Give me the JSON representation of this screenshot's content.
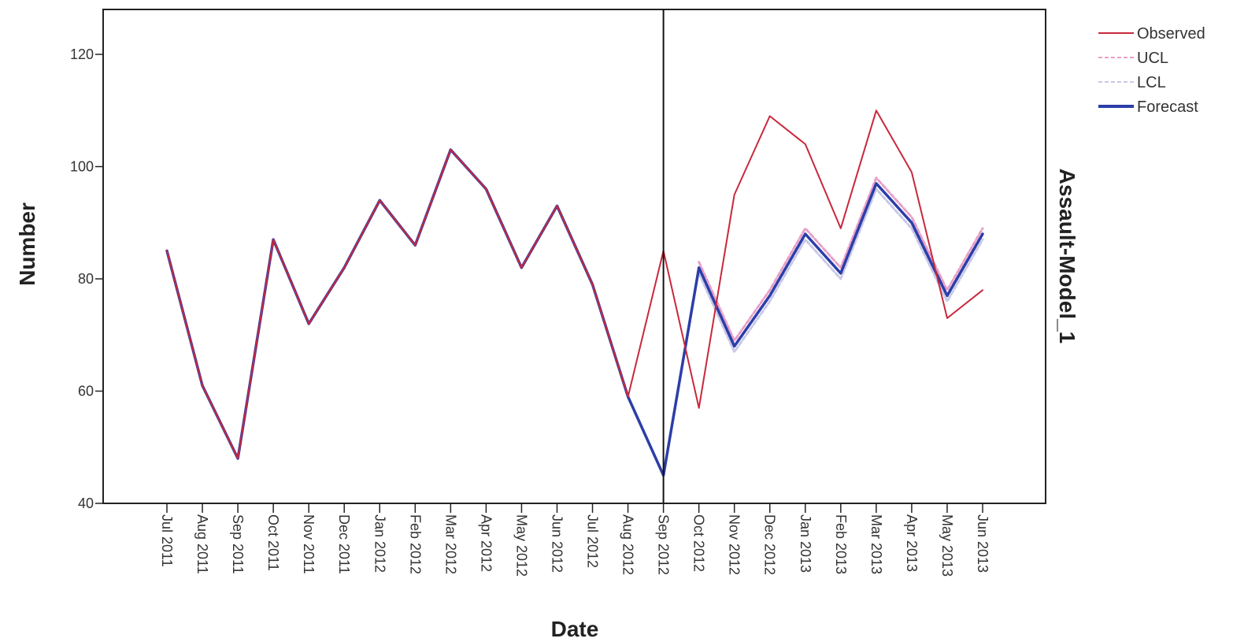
{
  "chart_data": {
    "type": "line",
    "title": "",
    "xlabel": "Date",
    "ylabel": "Number",
    "side_label": "Assault-Model_1",
    "ylim": [
      40,
      128
    ],
    "yticks": [
      40,
      60,
      80,
      100,
      120
    ],
    "categories": [
      "Jul 2011",
      "Aug 2011",
      "Sep 2011",
      "Oct 2011",
      "Nov 2011",
      "Dec 2011",
      "Jan 2012",
      "Feb 2012",
      "Mar 2012",
      "Apr 2012",
      "May 2012",
      "Jun 2012",
      "Jul 2012",
      "Aug 2012",
      "Sep 2012",
      "Oct 2012",
      "Nov 2012",
      "Dec 2012",
      "Jan 2013",
      "Feb 2013",
      "Mar 2013",
      "Apr 2013",
      "May 2013",
      "Jun 2013"
    ],
    "reference_line": "Sep 2012",
    "grid": false,
    "legend_position": "top-right",
    "series": [
      {
        "name": "Observed",
        "color": "#c8283c",
        "style": "solid",
        "values": [
          85,
          61,
          48,
          87,
          72,
          82,
          94,
          86,
          103,
          96,
          82,
          93,
          79,
          59,
          85,
          57,
          95,
          109,
          104,
          89,
          110,
          99,
          73,
          78
        ]
      },
      {
        "name": "UCL",
        "color": "#e8a0c8",
        "style": "dashed",
        "values": [
          85,
          61,
          48,
          87,
          72,
          82,
          94,
          86,
          103,
          96,
          82,
          93,
          79,
          59,
          null,
          83,
          69,
          78,
          89,
          82,
          98,
          91,
          78,
          89
        ]
      },
      {
        "name": "LCL",
        "color": "#c8c8e8",
        "style": "dashed",
        "values": [
          85,
          61,
          48,
          87,
          72,
          82,
          94,
          86,
          103,
          96,
          82,
          93,
          79,
          59,
          null,
          81,
          67,
          76,
          87,
          80,
          96,
          89,
          76,
          87
        ]
      },
      {
        "name": "Forecast",
        "color": "#2c3ea8",
        "style": "solid",
        "values": [
          85,
          61,
          48,
          87,
          72,
          82,
          94,
          86,
          103,
          96,
          82,
          93,
          79,
          59,
          45,
          82,
          68,
          77,
          88,
          81,
          97,
          90,
          77,
          88
        ]
      }
    ]
  }
}
